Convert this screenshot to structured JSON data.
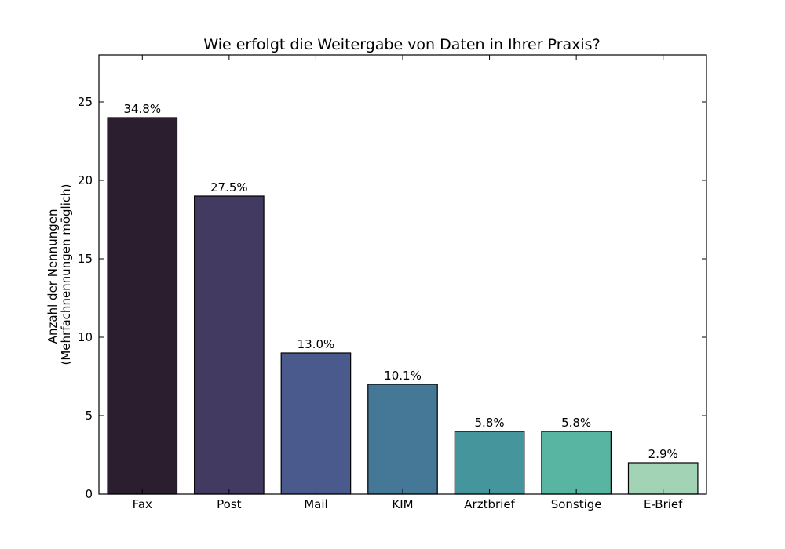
{
  "chart_data": {
    "type": "bar",
    "title": "Wie erfolgt die Weitergabe von Daten in Ihrer Praxis?",
    "xlabel": "",
    "ylabel_line1": "Anzahl der Nennungen",
    "ylabel_line2": "(Mehrfachnennungen möglich)",
    "ylim": [
      0,
      28
    ],
    "yticks": [
      0,
      5,
      10,
      15,
      20,
      25
    ],
    "grid": false,
    "categories": [
      "Fax",
      "Post",
      "Mail",
      "KIM",
      "Arztbrief",
      "Sonstige",
      "E-Brief"
    ],
    "values": [
      24,
      19,
      9,
      7,
      4,
      4,
      2
    ],
    "data_labels": [
      "34.8%",
      "27.5%",
      "13.0%",
      "10.1%",
      "5.8%",
      "5.8%",
      "2.9%"
    ],
    "colors": [
      "#2b1f2f",
      "#433a62",
      "#4a5a8c",
      "#447896",
      "#44969c",
      "#57b5a2",
      "#a2d3b5"
    ]
  }
}
